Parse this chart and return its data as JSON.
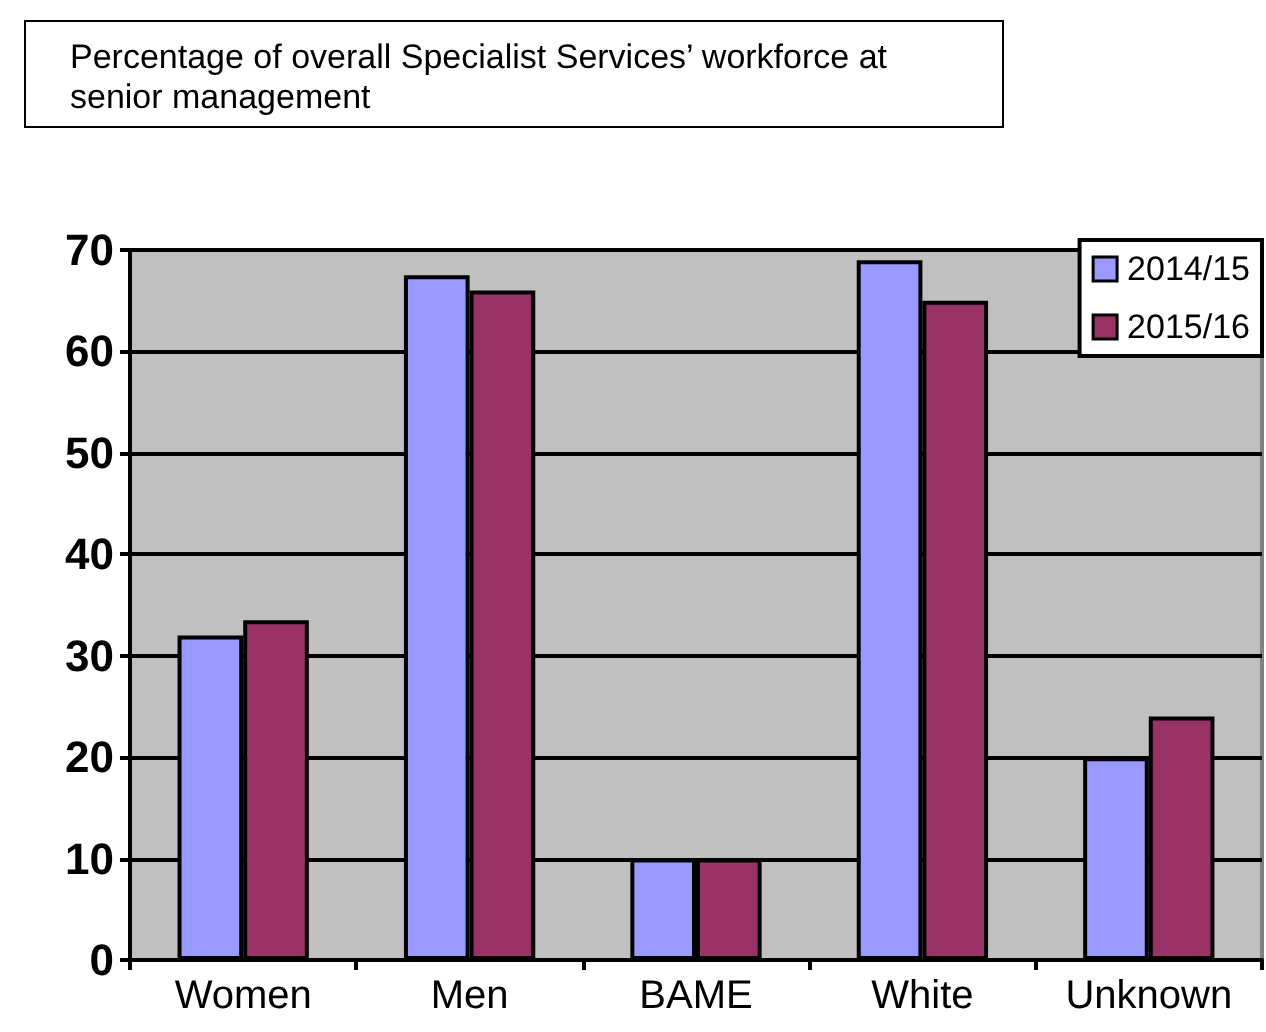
{
  "chart_data": {
    "type": "bar",
    "title": "Percentage of overall Specialist Services’ workforce at senior management",
    "categories": [
      "Women",
      "Men",
      "BAME",
      "White",
      "Unknown"
    ],
    "series": [
      {
        "name": "2014/15",
        "color": "#9999ff",
        "values": [
          32,
          67.5,
          10,
          69,
          20
        ]
      },
      {
        "name": "2015/16",
        "color": "#993366",
        "values": [
          33.5,
          66,
          10,
          65,
          24
        ]
      }
    ],
    "ylim": [
      0,
      70
    ],
    "yticks": [
      0,
      10,
      20,
      30,
      40,
      50,
      60,
      70
    ],
    "grid": "y",
    "legend": "top right"
  }
}
